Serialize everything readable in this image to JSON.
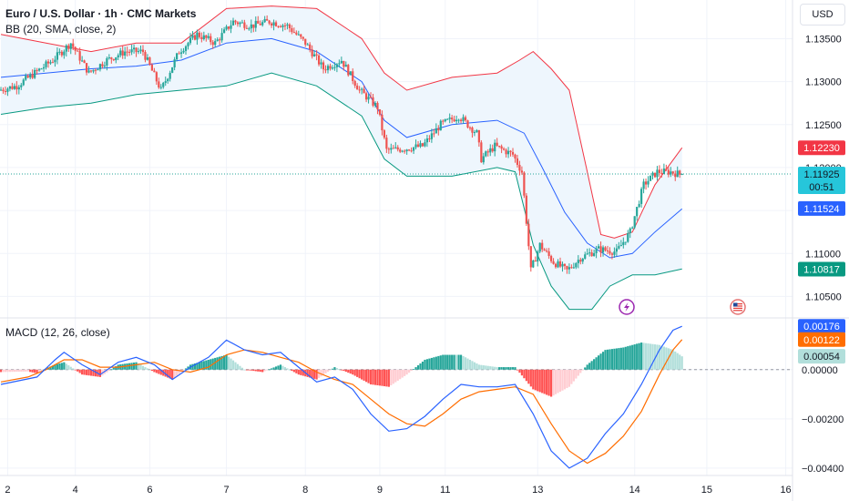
{
  "header": {
    "symbol_title": "Euro / U.S. Dollar · 1h · CMC Markets",
    "bb_legend": "BB (20, SMA, close, 2)",
    "macd_legend": "MACD (12, 26, close)",
    "currency": "USD"
  },
  "colors": {
    "up": "#26a69a",
    "down": "#ef5350",
    "bb_upper": "#f23645",
    "bb_basis": "#2962ff",
    "bb_lower": "#089981",
    "bb_fill": "#eef6fd",
    "macd_line": "#2962ff",
    "signal_line": "#ff6d00",
    "price_line": "#26a69a",
    "grid": "#f0f3fa"
  },
  "badges": {
    "bb_upper": {
      "text": "1.12230",
      "color": "#f23645"
    },
    "last_price": {
      "text": "1.11925",
      "countdown": "00:51",
      "color": "#26c6da"
    },
    "bb_basis": {
      "text": "1.11524",
      "color": "#2962ff"
    },
    "bb_lower": {
      "text": "1.10817",
      "color": "#089981"
    },
    "macd": {
      "text": "0.00176",
      "color": "#2962ff"
    },
    "signal": {
      "text": "0.00122",
      "color": "#ff6d00"
    },
    "histogram": {
      "text": "0.00054",
      "color": "#b2dfdb"
    }
  },
  "event_icons": [
    "lightning-event-icon",
    "us-flag-event-icon"
  ],
  "chart_data": [
    {
      "type": "candlestick",
      "title": "Euro / U.S. Dollar · 1h · CMC Markets",
      "x_ticks": [
        "2",
        "4",
        "6",
        "7",
        "8",
        "9",
        "11",
        "13",
        "14",
        "15",
        "16"
      ],
      "x_tick_index": [
        3,
        33,
        66,
        100,
        135,
        168,
        197,
        238,
        281,
        313,
        348
      ],
      "ylim": [
        1.1025,
        1.1395
      ],
      "y_ticks": [
        "1.13500",
        "1.13000",
        "1.12500",
        "1.12000",
        "1.11500",
        "1.11000",
        "1.10500"
      ],
      "y_tick_values": [
        1.135,
        1.13,
        1.125,
        1.12,
        1.115,
        1.11,
        1.105
      ],
      "last_price": 1.11925,
      "key_points": [
        [
          0,
          1.129
        ],
        [
          8,
          1.1295
        ],
        [
          16,
          1.131
        ],
        [
          24,
          1.1325
        ],
        [
          32,
          1.1345
        ],
        [
          40,
          1.131
        ],
        [
          48,
          1.1325
        ],
        [
          56,
          1.1335
        ],
        [
          64,
          1.1335
        ],
        [
          72,
          1.129
        ],
        [
          80,
          1.1335
        ],
        [
          88,
          1.1355
        ],
        [
          96,
          1.1345
        ],
        [
          104,
          1.137
        ],
        [
          112,
          1.1365
        ],
        [
          120,
          1.137
        ],
        [
          128,
          1.1365
        ],
        [
          136,
          1.1345
        ],
        [
          144,
          1.1315
        ],
        [
          152,
          1.1325
        ],
        [
          160,
          1.129
        ],
        [
          168,
          1.127
        ],
        [
          172,
          1.122
        ],
        [
          180,
          1.1222
        ],
        [
          188,
          1.1225
        ],
        [
          196,
          1.125
        ],
        [
          204,
          1.126
        ],
        [
          212,
          1.124
        ],
        [
          214,
          1.121
        ],
        [
          220,
          1.1225
        ],
        [
          228,
          1.1215
        ],
        [
          232,
          1.1195
        ],
        [
          236,
          1.108
        ],
        [
          240,
          1.111
        ],
        [
          246,
          1.109
        ],
        [
          252,
          1.108
        ],
        [
          258,
          1.1095
        ],
        [
          266,
          1.1105
        ],
        [
          274,
          1.1102
        ],
        [
          280,
          1.1125
        ],
        [
          286,
          1.118
        ],
        [
          292,
          1.1195
        ],
        [
          298,
          1.1195
        ],
        [
          302,
          1.1192
        ]
      ],
      "last_index": 302,
      "bb_upper": [
        [
          0,
          1.1355
        ],
        [
          20,
          1.1345
        ],
        [
          40,
          1.1335
        ],
        [
          60,
          1.1345
        ],
        [
          80,
          1.1345
        ],
        [
          100,
          1.1385
        ],
        [
          120,
          1.1388
        ],
        [
          140,
          1.1385
        ],
        [
          160,
          1.135
        ],
        [
          170,
          1.131
        ],
        [
          180,
          1.129
        ],
        [
          200,
          1.1305
        ],
        [
          220,
          1.131
        ],
        [
          230,
          1.1325
        ],
        [
          236,
          1.1335
        ],
        [
          244,
          1.1315
        ],
        [
          252,
          1.129
        ],
        [
          260,
          1.1195
        ],
        [
          266,
          1.1122
        ],
        [
          272,
          1.1118
        ],
        [
          280,
          1.1125
        ],
        [
          290,
          1.118
        ],
        [
          302,
          1.1223
        ]
      ],
      "bb_basis": [
        [
          0,
          1.1305
        ],
        [
          20,
          1.131
        ],
        [
          40,
          1.1315
        ],
        [
          60,
          1.1318
        ],
        [
          80,
          1.1325
        ],
        [
          100,
          1.1345
        ],
        [
          120,
          1.135
        ],
        [
          140,
          1.1335
        ],
        [
          160,
          1.13
        ],
        [
          170,
          1.1255
        ],
        [
          180,
          1.1235
        ],
        [
          200,
          1.125
        ],
        [
          220,
          1.1255
        ],
        [
          232,
          1.124
        ],
        [
          240,
          1.12
        ],
        [
          250,
          1.1148
        ],
        [
          260,
          1.1112
        ],
        [
          270,
          1.1095
        ],
        [
          280,
          1.11
        ],
        [
          290,
          1.1125
        ],
        [
          302,
          1.1152
        ]
      ],
      "bb_lower": [
        [
          0,
          1.1262
        ],
        [
          20,
          1.127
        ],
        [
          40,
          1.1275
        ],
        [
          60,
          1.1285
        ],
        [
          80,
          1.129
        ],
        [
          100,
          1.1295
        ],
        [
          120,
          1.131
        ],
        [
          140,
          1.1295
        ],
        [
          160,
          1.126
        ],
        [
          170,
          1.121
        ],
        [
          180,
          1.119
        ],
        [
          200,
          1.119
        ],
        [
          220,
          1.12
        ],
        [
          228,
          1.1195
        ],
        [
          236,
          1.111
        ],
        [
          244,
          1.1062
        ],
        [
          252,
          1.1035
        ],
        [
          262,
          1.1035
        ],
        [
          270,
          1.1062
        ],
        [
          280,
          1.1075
        ],
        [
          290,
          1.1075
        ],
        [
          302,
          1.1082
        ]
      ]
    },
    {
      "type": "line",
      "title": "MACD (12, 26, close)",
      "ylim": [
        -0.0043,
        0.0021
      ],
      "y_ticks": [
        "0.00000",
        "−0.00200",
        "−0.00400"
      ],
      "y_tick_values": [
        0,
        -0.002,
        -0.004
      ],
      "macd": [
        [
          0,
          -0.0006
        ],
        [
          16,
          -0.0003
        ],
        [
          24,
          0.0004
        ],
        [
          28,
          0.0007
        ],
        [
          36,
          0.0002
        ],
        [
          44,
          -0.0002
        ],
        [
          52,
          0.0003
        ],
        [
          60,
          0.0005
        ],
        [
          68,
          0.0002
        ],
        [
          76,
          -0.0004
        ],
        [
          84,
          0.0001
        ],
        [
          92,
          0.0005
        ],
        [
          100,
          0.0012
        ],
        [
          108,
          0.0008
        ],
        [
          116,
          0.0006
        ],
        [
          124,
          0.0007
        ],
        [
          132,
          0.0001
        ],
        [
          140,
          -0.0005
        ],
        [
          148,
          -0.0003
        ],
        [
          156,
          -0.0008
        ],
        [
          164,
          -0.0018
        ],
        [
          172,
          -0.0025
        ],
        [
          180,
          -0.0024
        ],
        [
          188,
          -0.0019
        ],
        [
          196,
          -0.0012
        ],
        [
          204,
          -0.0006
        ],
        [
          212,
          -0.0007
        ],
        [
          220,
          -0.0007
        ],
        [
          228,
          -0.0006
        ],
        [
          236,
          -0.0018
        ],
        [
          244,
          -0.0033
        ],
        [
          252,
          -0.004
        ],
        [
          260,
          -0.0036
        ],
        [
          268,
          -0.0026
        ],
        [
          276,
          -0.0018
        ],
        [
          284,
          -0.0006
        ],
        [
          292,
          0.0008
        ],
        [
          298,
          0.0016
        ],
        [
          302,
          0.00176
        ]
      ],
      "signal": [
        [
          0,
          -0.0005
        ],
        [
          12,
          -0.0003
        ],
        [
          20,
          0.0
        ],
        [
          28,
          0.0004
        ],
        [
          36,
          0.0004
        ],
        [
          44,
          0.0001
        ],
        [
          52,
          0.0001
        ],
        [
          60,
          0.0002
        ],
        [
          68,
          0.0003
        ],
        [
          76,
          0.0
        ],
        [
          84,
          -0.0001
        ],
        [
          92,
          0.0001
        ],
        [
          100,
          0.0006
        ],
        [
          108,
          0.0008
        ],
        [
          116,
          0.0007
        ],
        [
          124,
          0.0005
        ],
        [
          132,
          0.0003
        ],
        [
          140,
          -0.0001
        ],
        [
          148,
          -0.0004
        ],
        [
          156,
          -0.0006
        ],
        [
          164,
          -0.0012
        ],
        [
          172,
          -0.0018
        ],
        [
          180,
          -0.0022
        ],
        [
          188,
          -0.0023
        ],
        [
          196,
          -0.0018
        ],
        [
          204,
          -0.0012
        ],
        [
          212,
          -0.0009
        ],
        [
          220,
          -0.0008
        ],
        [
          228,
          -0.0007
        ],
        [
          236,
          -0.001
        ],
        [
          244,
          -0.0022
        ],
        [
          252,
          -0.0033
        ],
        [
          260,
          -0.0038
        ],
        [
          268,
          -0.0034
        ],
        [
          276,
          -0.0027
        ],
        [
          284,
          -0.0017
        ],
        [
          292,
          -0.0002
        ],
        [
          298,
          0.0008
        ],
        [
          302,
          0.00122
        ]
      ]
    }
  ]
}
